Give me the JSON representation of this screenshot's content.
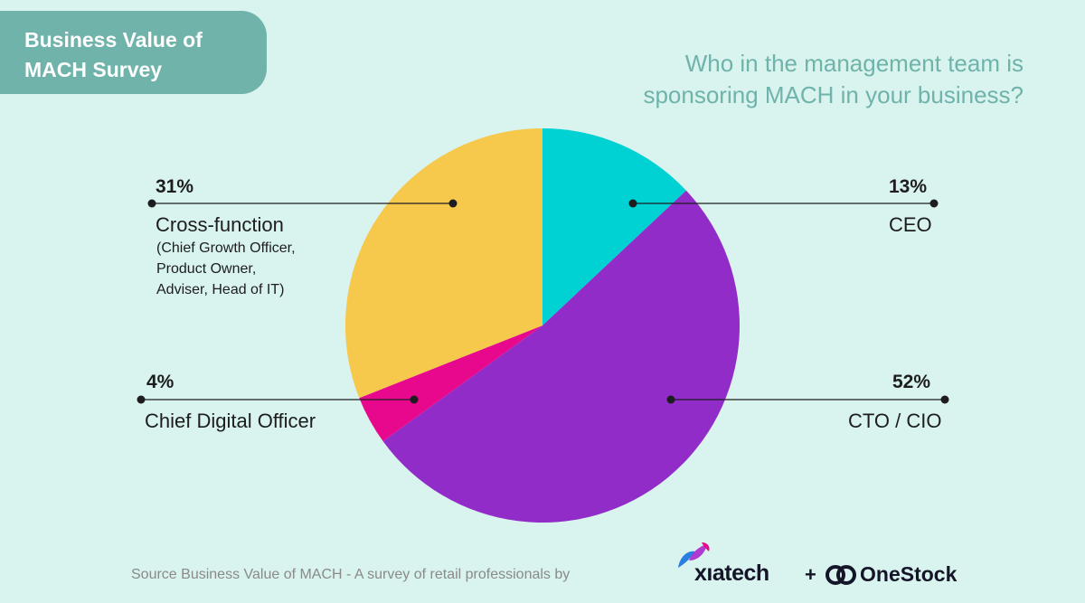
{
  "badge": {
    "line1": "Business Value of",
    "line2": "MACH Survey"
  },
  "question": {
    "line1": "Who in the management team is",
    "line2": "sponsoring MACH in your business?"
  },
  "footer": {
    "source": "Source Business Value of MACH - A survey of retail professionals by"
  },
  "logos": {
    "xiatech": "xıatech",
    "plus": "+",
    "onestock": "OneStock"
  },
  "chart_data": {
    "type": "pie",
    "title": "Who in the management team is sponsoring MACH in your business?",
    "slices": [
      {
        "label": "CEO",
        "value": 13,
        "pct_label": "13%",
        "color": "#00d2d3"
      },
      {
        "label": "CTO / CIO",
        "value": 52,
        "pct_label": "52%",
        "color": "#922cc8"
      },
      {
        "label": "Chief Digital Officer",
        "value": 4,
        "pct_label": "4%",
        "color": "#e8088e"
      },
      {
        "label": "Cross-function",
        "value": 31,
        "pct_label": "31%",
        "color": "#f6c84b",
        "sublabel": [
          "(Chief Growth Officer,",
          "Product Owner,",
          "Adviser, Head of IT)"
        ]
      }
    ]
  }
}
